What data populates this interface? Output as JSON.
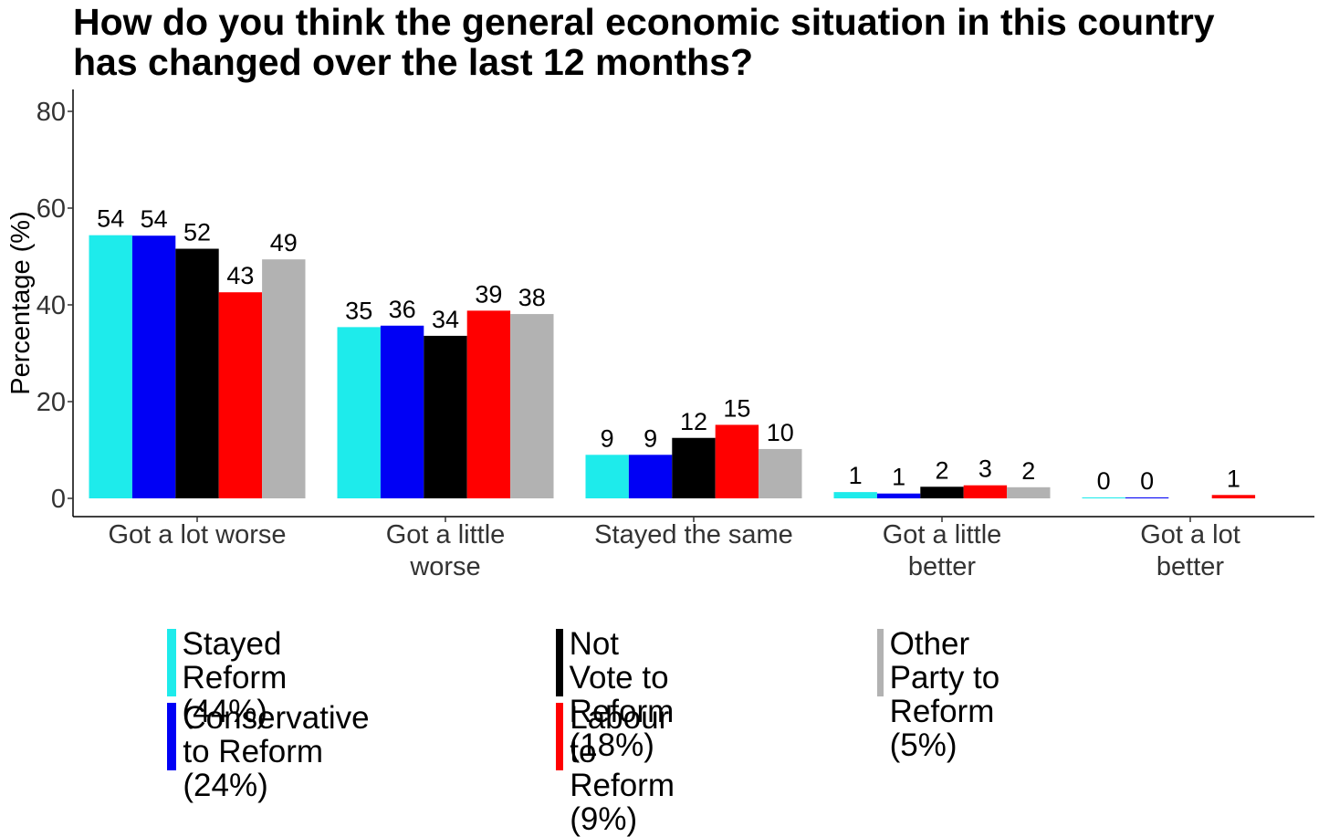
{
  "title": [
    "How do you think the general economic situation in this country",
    "has changed over the last 12 months?"
  ],
  "chart_data": {
    "type": "bar",
    "title": "How do you think the general economic situation in this country has changed over the last 12 months?",
    "xlabel": "",
    "ylabel": "Percentage (%)",
    "ylim": [
      0,
      84
    ],
    "yticks": [
      0,
      20,
      40,
      60,
      80
    ],
    "grid": false,
    "legend_position": "bottom",
    "categories": [
      [
        "Got a lot worse"
      ],
      [
        "Got a little",
        "worse"
      ],
      [
        "Stayed the same"
      ],
      [
        "Got a little",
        "better"
      ],
      [
        "Got a lot",
        "better"
      ]
    ],
    "series": [
      {
        "name": "Stayed Reform",
        "share": "(44%)",
        "color": "#1EEBEB",
        "values": [
          54,
          35,
          9,
          1,
          0
        ]
      },
      {
        "name": "Conservative to Reform",
        "share": "(24%)",
        "color": "#0000F5",
        "values": [
          54,
          36,
          9,
          1,
          0
        ]
      },
      {
        "name": "Not Vote to Reform",
        "share": "(18%)",
        "color": "#000000",
        "values": [
          52,
          34,
          12,
          2,
          null
        ]
      },
      {
        "name": "Labour to Reform",
        "share": "(9%)",
        "color": "#FF0000",
        "values": [
          43,
          39,
          15,
          3,
          1
        ]
      },
      {
        "name": "Other Party to Reform",
        "share": "(5%)",
        "color": "#B2B2B2",
        "values": [
          49,
          38,
          10,
          2,
          null
        ]
      }
    ],
    "precise_values": [
      [
        54.4,
        54.3,
        51.6,
        42.6,
        49.4
      ],
      [
        35.4,
        35.7,
        33.6,
        38.8,
        38.1
      ],
      [
        9.0,
        9.0,
        12.5,
        15.2,
        10.2
      ],
      [
        1.3,
        1.0,
        2.4,
        2.7,
        2.3
      ],
      [
        0.2,
        0.2,
        null,
        0.7,
        null
      ]
    ]
  }
}
